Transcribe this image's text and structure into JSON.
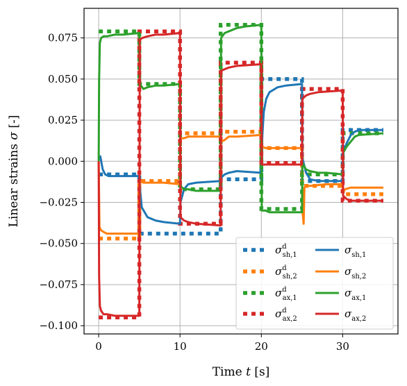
{
  "chart_data": {
    "type": "line",
    "xlabel_prefix": "Time ",
    "xlabel_var": "t",
    "xlabel_suffix": " [s]",
    "ylabel_prefix": "Linear strains ",
    "ylabel_var": "σ",
    "ylabel_suffix": " [-]",
    "xlim": [
      -1.8,
      36.8
    ],
    "ylim": [
      -0.105,
      0.093
    ],
    "grid": true,
    "legend_position": "lower-right",
    "x_ticks": [
      0,
      10,
      20,
      30
    ],
    "x_tick_labels": [
      "0",
      "10",
      "20",
      "30"
    ],
    "y_ticks": [
      0.075,
      0.05,
      0.025,
      0.0,
      -0.025,
      -0.05,
      -0.075,
      -0.1
    ],
    "y_tick_labels": [
      "0.075",
      "0.050",
      "0.025",
      "0.000",
      "−0.025",
      "−0.050",
      "−0.075",
      "−0.100"
    ],
    "reference_series": [
      {
        "name": "σ",
        "sub": "sh,1",
        "sup": "d",
        "color": "#1f77b4",
        "x": [
          0,
          5,
          5,
          10,
          10,
          15,
          15,
          20,
          20,
          25,
          25,
          30,
          30,
          35
        ],
        "y": [
          -0.008,
          -0.008,
          -0.044,
          -0.044,
          -0.044,
          -0.044,
          -0.011,
          -0.011,
          0.05,
          0.05,
          -0.012,
          -0.012,
          0.019,
          0.019
        ]
      },
      {
        "name": "σ",
        "sub": "sh,2",
        "sup": "d",
        "color": "#ff7f0e",
        "x": [
          0,
          5,
          5,
          10,
          10,
          15,
          15,
          20,
          20,
          25,
          25,
          30,
          30,
          35
        ],
        "y": [
          -0.047,
          -0.047,
          -0.012,
          -0.012,
          0.017,
          0.017,
          0.018,
          0.018,
          0.008,
          0.008,
          -0.015,
          -0.015,
          -0.02,
          -0.02
        ]
      },
      {
        "name": "σ",
        "sub": "ax,1",
        "sup": "d",
        "color": "#2ca02c",
        "x": [
          0,
          5,
          5,
          10,
          10,
          15,
          15,
          20,
          20,
          25,
          25,
          30,
          30,
          35
        ],
        "y": [
          0.079,
          0.079,
          0.047,
          0.047,
          -0.017,
          -0.017,
          0.083,
          0.083,
          -0.029,
          -0.029,
          -0.008,
          -0.008,
          0.017,
          0.017
        ]
      },
      {
        "name": "σ",
        "sub": "ax,2",
        "sup": "d",
        "color": "#d62728",
        "x": [
          0,
          5,
          5,
          10,
          10,
          15,
          15,
          20,
          20,
          25,
          25,
          30,
          30,
          35
        ],
        "y": [
          -0.095,
          -0.095,
          0.079,
          0.079,
          -0.038,
          -0.038,
          0.06,
          0.06,
          -0.001,
          -0.001,
          0.044,
          0.044,
          -0.024,
          -0.024
        ]
      }
    ],
    "model_series": [
      {
        "name": "σ",
        "sub": "sh,1",
        "color": "#1f77b4",
        "x": [
          0,
          0.2,
          0.5,
          0.8,
          1.2,
          2,
          3,
          4,
          5,
          5.05,
          5.3,
          6,
          7,
          8,
          10,
          10.05,
          10.5,
          11,
          12,
          15,
          15.05,
          15.5,
          16,
          17,
          20,
          20.05,
          20.3,
          20.6,
          21,
          22,
          23,
          25,
          25.05,
          25.5,
          26,
          27,
          30,
          30.05,
          30.5,
          31,
          31.5,
          32,
          35
        ],
        "y": [
          0.001,
          0.003,
          -0.005,
          -0.008,
          -0.009,
          -0.009,
          -0.009,
          -0.009,
          -0.009,
          -0.015,
          -0.028,
          -0.034,
          -0.036,
          -0.037,
          -0.038,
          -0.025,
          -0.017,
          -0.014,
          -0.013,
          -0.012,
          -0.01,
          -0.008,
          -0.007,
          -0.006,
          -0.007,
          0.01,
          0.03,
          0.038,
          0.042,
          0.045,
          0.046,
          0.047,
          0.002,
          -0.007,
          -0.011,
          -0.012,
          -0.012,
          0.005,
          0.011,
          0.016,
          0.018,
          0.019,
          0.019
        ]
      },
      {
        "name": "σ",
        "sub": "sh,2",
        "color": "#ff7f0e",
        "x": [
          0,
          0.1,
          0.3,
          0.6,
          1,
          2,
          3,
          5,
          5.05,
          5.5,
          6,
          7,
          8,
          10,
          10.05,
          10.5,
          11,
          13,
          15,
          15.1,
          15.5,
          16,
          17,
          20,
          20.05,
          20.5,
          22,
          25,
          25.05,
          25.2,
          25.3,
          25.6,
          26,
          28,
          30,
          30.05,
          30.3,
          31,
          32,
          35
        ],
        "y": [
          0,
          -0.04,
          -0.042,
          -0.043,
          -0.044,
          -0.044,
          -0.044,
          -0.044,
          -0.012,
          -0.013,
          -0.013,
          -0.013,
          -0.013,
          -0.014,
          0.014,
          0.014,
          0.015,
          0.015,
          0.015,
          0.012,
          0.013,
          0.015,
          0.015,
          0.016,
          0.009,
          0.008,
          0.008,
          0.008,
          -0.03,
          -0.038,
          -0.016,
          -0.015,
          -0.015,
          -0.014,
          -0.014,
          -0.019,
          -0.017,
          -0.016,
          -0.016,
          -0.016
        ]
      },
      {
        "name": "σ",
        "sub": "ax,1",
        "color": "#2ca02c",
        "x": [
          0,
          0.05,
          0.15,
          0.3,
          0.6,
          1,
          2,
          3,
          5,
          5.05,
          5.5,
          6,
          7,
          8,
          10,
          10.05,
          10.5,
          11,
          12,
          15,
          15.05,
          15.5,
          16,
          17,
          18,
          20,
          20.05,
          20.5,
          21,
          22,
          25,
          25.05,
          25.5,
          26,
          27,
          28,
          30,
          30.05,
          30.5,
          31,
          31.5,
          32,
          35
        ],
        "y": [
          0,
          0.05,
          0.072,
          0.075,
          0.076,
          0.076,
          0.077,
          0.077,
          0.078,
          0.047,
          0.044,
          0.045,
          0.046,
          0.046,
          0.047,
          -0.015,
          -0.017,
          -0.017,
          -0.018,
          -0.018,
          0.075,
          0.078,
          0.079,
          0.081,
          0.082,
          0.083,
          -0.03,
          -0.03,
          -0.031,
          -0.031,
          -0.031,
          -0.001,
          -0.005,
          -0.006,
          -0.007,
          -0.007,
          -0.008,
          0.005,
          0.009,
          0.012,
          0.015,
          0.016,
          0.017
        ]
      },
      {
        "name": "σ",
        "sub": "ax,2",
        "color": "#d62728",
        "x": [
          0,
          0.05,
          0.15,
          0.3,
          0.6,
          1,
          2,
          3,
          5,
          5.05,
          5.4,
          6,
          7,
          8,
          10,
          10.05,
          10.5,
          11,
          12,
          15,
          15.05,
          15.5,
          16,
          17,
          20,
          20.05,
          20.5,
          22,
          25,
          25.05,
          25.5,
          26,
          27,
          30,
          30.05,
          30.5,
          31,
          32,
          35
        ],
        "y": [
          0,
          -0.07,
          -0.088,
          -0.091,
          -0.093,
          -0.093,
          -0.094,
          -0.094,
          -0.094,
          0.074,
          0.075,
          0.076,
          0.077,
          0.077,
          0.078,
          -0.034,
          -0.036,
          -0.037,
          -0.038,
          -0.039,
          0.055,
          0.056,
          0.057,
          0.058,
          0.059,
          -0.002,
          -0.002,
          -0.002,
          -0.002,
          0.038,
          0.04,
          0.041,
          0.042,
          0.043,
          -0.021,
          -0.023,
          -0.024,
          -0.024,
          -0.024
        ]
      }
    ]
  }
}
